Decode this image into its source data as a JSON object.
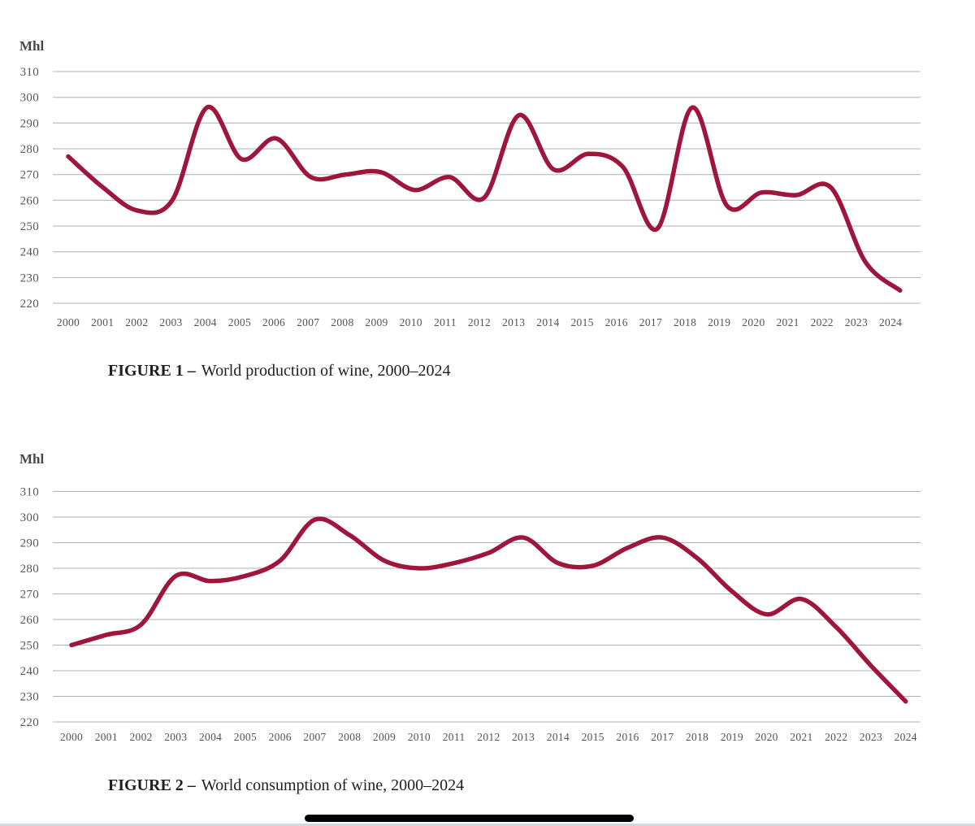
{
  "figures": [
    {
      "label_with_dash": "FIGURE 1 –",
      "title": "World production of wine, 2000–2024"
    },
    {
      "label_with_dash": "FIGURE 2 –",
      "title": "World consumption of wine, 2000–2024"
    }
  ],
  "chart_data": [
    {
      "type": "line",
      "title": "World production of wine, 2000-2024",
      "ylabel": "Mhl",
      "x": [
        2000,
        2001,
        2002,
        2003,
        2004,
        2005,
        2006,
        2007,
        2008,
        2009,
        2010,
        2011,
        2012,
        2013,
        2014,
        2015,
        2016,
        2017,
        2018,
        2019,
        2020,
        2021,
        2022,
        2023,
        2024
      ],
      "values": [
        277,
        265,
        256,
        260,
        296,
        276,
        284,
        269,
        270,
        271,
        264,
        269,
        261,
        293,
        272,
        278,
        273,
        249,
        296,
        258,
        263,
        262,
        265,
        236,
        225
      ],
      "ylim": [
        220,
        310
      ],
      "ytick_step": 10,
      "grid": true,
      "legend": "none",
      "line_color": "#9e163c",
      "grid_color": "#b0b0b0",
      "tick_color": "#555555"
    },
    {
      "type": "line",
      "title": "World consumption of wine, 2000-2024",
      "ylabel": "Mhl",
      "x": [
        2000,
        2001,
        2002,
        2003,
        2004,
        2005,
        2006,
        2007,
        2008,
        2009,
        2010,
        2011,
        2012,
        2013,
        2014,
        2015,
        2016,
        2017,
        2018,
        2019,
        2020,
        2021,
        2022,
        2023,
        2024
      ],
      "values": [
        250,
        254,
        258,
        277,
        275,
        277,
        283,
        299,
        293,
        283,
        280,
        282,
        286,
        292,
        282,
        281,
        288,
        292,
        284,
        271,
        262,
        268,
        257,
        242,
        228
      ],
      "ylim": [
        220,
        310
      ],
      "ytick_step": 10,
      "grid": true,
      "legend": "none",
      "line_color": "#9e163c",
      "grid_color": "#b0b0b0",
      "tick_color": "#555555"
    }
  ],
  "footer": {
    "divider_bar_color": "#000000"
  }
}
